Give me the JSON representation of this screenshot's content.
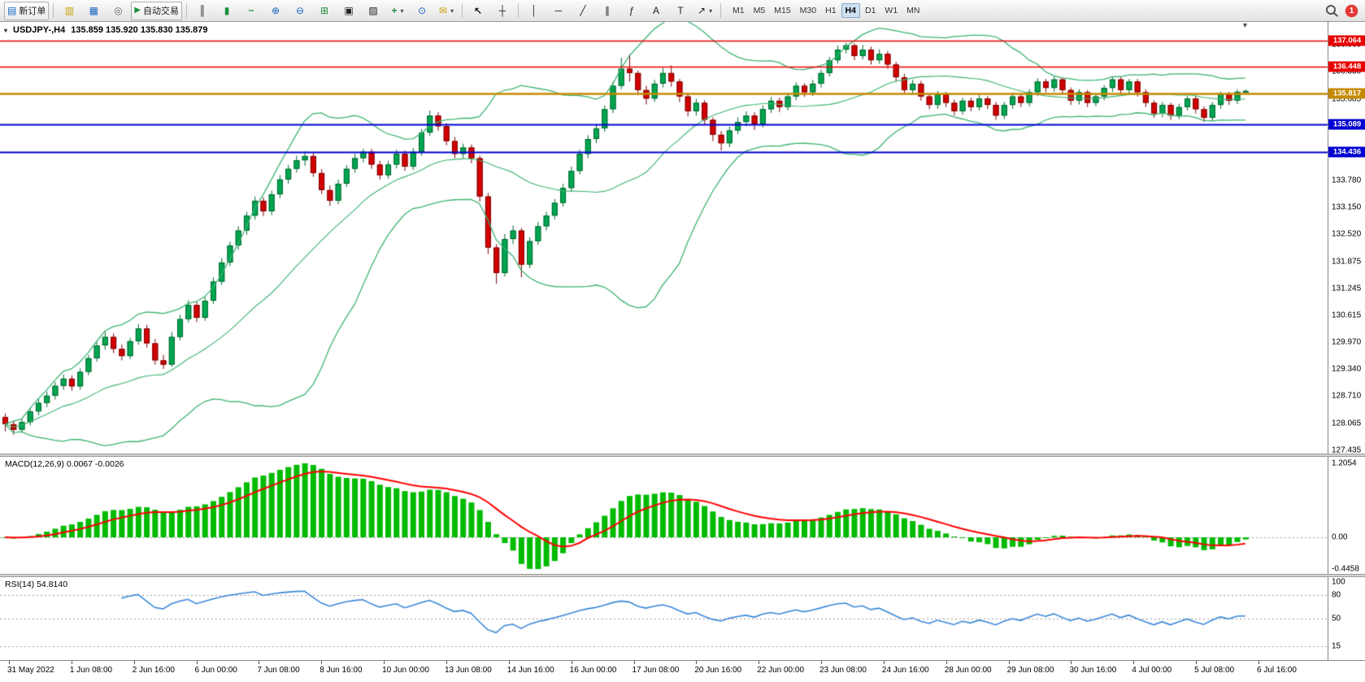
{
  "toolbar": {
    "new_order": "新订单",
    "auto_trading": "自动交易",
    "timeframes": [
      "M1",
      "M5",
      "M15",
      "M30",
      "H1",
      "H4",
      "D1",
      "W1",
      "MN"
    ],
    "active_timeframe": "H4",
    "notification_count": "1",
    "icons": {
      "new_order": "▤",
      "market_watch": "▥",
      "data_window": "▦",
      "navigator": "◎",
      "autotrade": "▶",
      "bars": "║",
      "candles": "▮",
      "line": "~",
      "zoom_in": "⊕",
      "zoom_out": "⊖",
      "grid": "⊞",
      "tile_h": "▣",
      "tile_v": "▨",
      "new_chart": "+",
      "profiles": "⊙",
      "alerts": "✉",
      "cursor": "↖",
      "crosshair": "┼",
      "vline": "│",
      "hline": "─",
      "trend": "╱",
      "channel": "∥",
      "fibo": "ƒ",
      "text": "A",
      "label": "T",
      "arrows": "↗",
      "caret": "▾",
      "shift": "▼"
    }
  },
  "chart": {
    "symbol_title": "USDJPY-,H4",
    "ohlc_text": "135.859 135.920 135.830 135.879"
  },
  "indicators": {
    "macd": {
      "label": "MACD(12,26,9) 0.0067 -0.0026"
    },
    "rsi": {
      "label": "RSI(14) 54.8140"
    }
  },
  "chart_data": {
    "type": "candlestick",
    "symbol": "USDJPY-",
    "timeframe": "H4",
    "current_ohlc": {
      "open": 135.859,
      "high": 135.92,
      "low": 135.83,
      "close": 135.879
    },
    "y_range": [
      127.36,
      137.5
    ],
    "y_axis_labels": [
      "136.960",
      "136.330",
      "135.685",
      "133.780",
      "133.150",
      "132.520",
      "131.875",
      "131.245",
      "130.615",
      "129.970",
      "129.340",
      "128.710",
      "128.065",
      "127.435"
    ],
    "x_labels": [
      "31 May 2022",
      "1 Jun 08:00",
      "2 Jun 16:00",
      "6 Jun 00:00",
      "7 Jun 08:00",
      "8 Jun 16:00",
      "10 Jun 00:00",
      "13 Jun 08:00",
      "14 Jun 16:00",
      "16 Jun 00:00",
      "17 Jun 08:00",
      "20 Jun 16:00",
      "22 Jun 00:00",
      "23 Jun 08:00",
      "24 Jun 16:00",
      "28 Jun 00:00",
      "29 Jun 08:00",
      "30 Jun 16:00",
      "4 Jul 00:00",
      "5 Jul 08:00",
      "6 Jul 16:00"
    ],
    "hlines": [
      {
        "label": "137.064",
        "price": 137.064,
        "color": "#e80000",
        "width": 1.4
      },
      {
        "label": "136.448",
        "price": 136.448,
        "color": "#e80000",
        "width": 1.4
      },
      {
        "label": "135.817",
        "price": 135.817,
        "color": "#c68a00",
        "width": 2.5
      },
      {
        "label": "135.089",
        "price": 135.089,
        "color": "#0000d0",
        "width": 2
      },
      {
        "label": "134.436",
        "price": 134.436,
        "color": "#0000d0",
        "width": 2
      }
    ],
    "bollinger": {
      "period": 20,
      "deviation": 2,
      "color": "#3cb371"
    },
    "colors": {
      "bull": "#00a650",
      "bull_edge": "#00662f",
      "bear": "#d30000",
      "bear_edge": "#7a0000"
    },
    "candles": [
      [
        128.22,
        128.3,
        127.88,
        128.05
      ],
      [
        128.05,
        128.14,
        127.8,
        127.92
      ],
      [
        127.92,
        128.18,
        127.85,
        128.1
      ],
      [
        128.1,
        128.42,
        128.02,
        128.35
      ],
      [
        128.35,
        128.64,
        128.26,
        128.55
      ],
      [
        128.55,
        128.82,
        128.45,
        128.72
      ],
      [
        128.72,
        129.04,
        128.63,
        128.95
      ],
      [
        128.95,
        129.22,
        128.86,
        129.12
      ],
      [
        129.12,
        129.2,
        128.84,
        128.94
      ],
      [
        128.94,
        129.36,
        128.86,
        129.28
      ],
      [
        129.28,
        129.68,
        129.2,
        129.6
      ],
      [
        129.6,
        129.98,
        129.52,
        129.9
      ],
      [
        129.9,
        130.22,
        129.8,
        130.1
      ],
      [
        130.1,
        130.18,
        129.72,
        129.82
      ],
      [
        129.82,
        129.92,
        129.55,
        129.65
      ],
      [
        129.65,
        130.08,
        129.58,
        130.0
      ],
      [
        130.0,
        130.4,
        129.92,
        130.3
      ],
      [
        130.3,
        130.38,
        129.85,
        129.95
      ],
      [
        129.95,
        130.05,
        129.45,
        129.55
      ],
      [
        129.55,
        129.68,
        129.35,
        129.45
      ],
      [
        129.45,
        130.22,
        129.4,
        130.1
      ],
      [
        130.1,
        130.62,
        130.02,
        130.52
      ],
      [
        130.52,
        130.96,
        130.44,
        130.85
      ],
      [
        130.85,
        130.92,
        130.45,
        130.55
      ],
      [
        130.55,
        131.04,
        130.48,
        130.95
      ],
      [
        130.95,
        131.5,
        130.88,
        131.4
      ],
      [
        131.4,
        131.95,
        131.32,
        131.85
      ],
      [
        131.85,
        132.34,
        131.76,
        132.25
      ],
      [
        132.25,
        132.7,
        132.15,
        132.6
      ],
      [
        132.6,
        133.04,
        132.5,
        132.95
      ],
      [
        132.95,
        133.4,
        132.86,
        133.3
      ],
      [
        133.3,
        133.38,
        132.94,
        133.05
      ],
      [
        133.05,
        133.54,
        132.96,
        133.45
      ],
      [
        133.45,
        133.9,
        133.36,
        133.8
      ],
      [
        133.8,
        134.14,
        133.7,
        134.05
      ],
      [
        134.05,
        134.36,
        133.96,
        134.25
      ],
      [
        134.25,
        134.46,
        134.12,
        134.35
      ],
      [
        134.35,
        134.42,
        133.86,
        133.95
      ],
      [
        133.95,
        134.04,
        133.46,
        133.55
      ],
      [
        133.55,
        133.66,
        133.18,
        133.3
      ],
      [
        133.3,
        133.8,
        133.22,
        133.7
      ],
      [
        133.7,
        134.14,
        133.62,
        134.05
      ],
      [
        134.05,
        134.4,
        133.96,
        134.3
      ],
      [
        134.3,
        134.52,
        134.2,
        134.45
      ],
      [
        134.45,
        134.52,
        134.05,
        134.15
      ],
      [
        134.15,
        134.24,
        133.8,
        133.9
      ],
      [
        133.9,
        134.24,
        133.82,
        134.15
      ],
      [
        134.15,
        134.5,
        134.06,
        134.4
      ],
      [
        134.4,
        134.48,
        134.0,
        134.1
      ],
      [
        134.1,
        134.54,
        134.02,
        134.45
      ],
      [
        134.45,
        134.98,
        134.36,
        134.9
      ],
      [
        134.9,
        135.42,
        134.82,
        135.3
      ],
      [
        135.3,
        135.38,
        134.95,
        135.05
      ],
      [
        135.05,
        135.12,
        134.6,
        134.7
      ],
      [
        134.7,
        134.8,
        134.3,
        134.4
      ],
      [
        134.4,
        134.64,
        134.3,
        134.55
      ],
      [
        134.55,
        134.62,
        134.18,
        134.3
      ],
      [
        134.3,
        134.36,
        133.28,
        133.4
      ],
      [
        133.4,
        133.48,
        132.05,
        132.2
      ],
      [
        132.2,
        132.28,
        131.35,
        131.6
      ],
      [
        131.6,
        132.52,
        131.52,
        132.4
      ],
      [
        132.4,
        132.72,
        132.28,
        132.6
      ],
      [
        132.6,
        132.66,
        131.5,
        131.8
      ],
      [
        131.8,
        132.44,
        131.72,
        132.35
      ],
      [
        132.35,
        132.8,
        132.26,
        132.7
      ],
      [
        132.7,
        133.04,
        132.6,
        132.95
      ],
      [
        132.95,
        133.34,
        132.86,
        133.25
      ],
      [
        133.25,
        133.7,
        133.16,
        133.6
      ],
      [
        133.6,
        134.1,
        133.52,
        134.0
      ],
      [
        134.0,
        134.5,
        133.92,
        134.4
      ],
      [
        134.4,
        134.84,
        134.3,
        134.75
      ],
      [
        134.75,
        135.1,
        134.65,
        135.0
      ],
      [
        135.0,
        135.54,
        134.92,
        135.45
      ],
      [
        135.45,
        136.1,
        135.36,
        136.0
      ],
      [
        136.0,
        136.66,
        135.92,
        136.4
      ],
      [
        136.4,
        136.74,
        136.1,
        136.3
      ],
      [
        136.3,
        136.36,
        135.78,
        135.9
      ],
      [
        135.9,
        136.0,
        135.56,
        135.7
      ],
      [
        135.7,
        136.14,
        135.62,
        136.05
      ],
      [
        136.05,
        136.42,
        135.96,
        136.3
      ],
      [
        136.3,
        136.48,
        135.98,
        136.1
      ],
      [
        136.1,
        136.16,
        135.62,
        135.75
      ],
      [
        135.75,
        135.84,
        135.28,
        135.4
      ],
      [
        135.4,
        135.7,
        135.3,
        135.6
      ],
      [
        135.6,
        135.66,
        135.08,
        135.2
      ],
      [
        135.2,
        135.26,
        134.7,
        134.85
      ],
      [
        134.85,
        134.94,
        134.48,
        134.65
      ],
      [
        134.65,
        135.04,
        134.56,
        134.95
      ],
      [
        134.95,
        135.26,
        134.86,
        135.15
      ],
      [
        135.15,
        135.4,
        135.05,
        135.3
      ],
      [
        135.3,
        135.38,
        134.96,
        135.1
      ],
      [
        135.1,
        135.54,
        135.02,
        135.45
      ],
      [
        135.45,
        135.74,
        135.36,
        135.65
      ],
      [
        135.65,
        135.72,
        135.38,
        135.5
      ],
      [
        135.5,
        135.84,
        135.42,
        135.75
      ],
      [
        135.75,
        136.08,
        135.66,
        136.0
      ],
      [
        136.0,
        136.06,
        135.74,
        135.85
      ],
      [
        135.85,
        136.14,
        135.76,
        136.05
      ],
      [
        136.05,
        136.38,
        135.96,
        136.3
      ],
      [
        136.3,
        136.68,
        136.22,
        136.6
      ],
      [
        136.6,
        136.94,
        136.52,
        136.85
      ],
      [
        136.85,
        137.01,
        136.76,
        136.95
      ],
      [
        136.95,
        137.0,
        136.6,
        136.7
      ],
      [
        136.7,
        136.96,
        136.62,
        136.85
      ],
      [
        136.85,
        136.92,
        136.5,
        136.6
      ],
      [
        136.6,
        136.86,
        136.52,
        136.75
      ],
      [
        136.75,
        136.82,
        136.4,
        136.5
      ],
      [
        136.5,
        136.56,
        136.1,
        136.2
      ],
      [
        136.2,
        136.28,
        135.8,
        135.9
      ],
      [
        135.9,
        136.14,
        135.82,
        136.05
      ],
      [
        136.05,
        136.12,
        135.65,
        135.75
      ],
      [
        135.75,
        135.82,
        135.45,
        135.55
      ],
      [
        135.55,
        135.88,
        135.46,
        135.8
      ],
      [
        135.8,
        135.86,
        135.5,
        135.6
      ],
      [
        135.6,
        135.68,
        135.3,
        135.4
      ],
      [
        135.4,
        135.72,
        135.32,
        135.65
      ],
      [
        135.65,
        135.72,
        135.4,
        135.5
      ],
      [
        135.5,
        135.78,
        135.42,
        135.7
      ],
      [
        135.7,
        135.76,
        135.45,
        135.55
      ],
      [
        135.55,
        135.62,
        135.2,
        135.3
      ],
      [
        135.3,
        135.62,
        135.22,
        135.55
      ],
      [
        135.55,
        135.84,
        135.46,
        135.75
      ],
      [
        135.75,
        135.82,
        135.5,
        135.6
      ],
      [
        135.6,
        135.92,
        135.52,
        135.85
      ],
      [
        135.85,
        136.18,
        135.76,
        136.1
      ],
      [
        136.1,
        136.16,
        135.85,
        135.95
      ],
      [
        135.95,
        136.22,
        135.86,
        136.15
      ],
      [
        136.15,
        136.2,
        135.8,
        135.9
      ],
      [
        135.9,
        135.96,
        135.55,
        135.65
      ],
      [
        135.65,
        135.92,
        135.56,
        135.85
      ],
      [
        135.85,
        135.9,
        135.5,
        135.6
      ],
      [
        135.6,
        135.82,
        135.52,
        135.75
      ],
      [
        135.75,
        136.02,
        135.66,
        135.95
      ],
      [
        135.95,
        136.22,
        135.86,
        136.15
      ],
      [
        136.15,
        136.2,
        135.8,
        135.9
      ],
      [
        135.9,
        136.16,
        135.82,
        136.1
      ],
      [
        136.1,
        136.16,
        135.75,
        135.85
      ],
      [
        135.85,
        135.92,
        135.5,
        135.6
      ],
      [
        135.6,
        135.66,
        135.25,
        135.35
      ],
      [
        135.35,
        135.62,
        135.26,
        135.55
      ],
      [
        135.55,
        135.6,
        135.2,
        135.3
      ],
      [
        135.3,
        135.58,
        135.22,
        135.5
      ],
      [
        135.5,
        135.76,
        135.42,
        135.7
      ],
      [
        135.7,
        135.76,
        135.35,
        135.45
      ],
      [
        135.45,
        135.52,
        135.15,
        135.25
      ],
      [
        135.25,
        135.62,
        135.17,
        135.55
      ],
      [
        135.55,
        135.86,
        135.46,
        135.8
      ],
      [
        135.8,
        135.86,
        135.55,
        135.65
      ],
      [
        135.65,
        135.92,
        135.57,
        135.86
      ],
      [
        135.859,
        135.92,
        135.83,
        135.879
      ]
    ],
    "macd": {
      "fast": 12,
      "slow": 26,
      "signal": 9,
      "values_text": "0.0067 -0.0026",
      "axis_labels": [
        "1.2054",
        "0.00",
        "-0.4458"
      ],
      "hist_color": "#00bb00",
      "signal_color": "#ff0000"
    },
    "rsi": {
      "period": 14,
      "current": "54.8140",
      "levels": [
        80,
        50,
        15
      ],
      "axis_labels": [
        "100",
        "80",
        "50",
        "15"
      ],
      "color": "#3a87d8"
    }
  }
}
